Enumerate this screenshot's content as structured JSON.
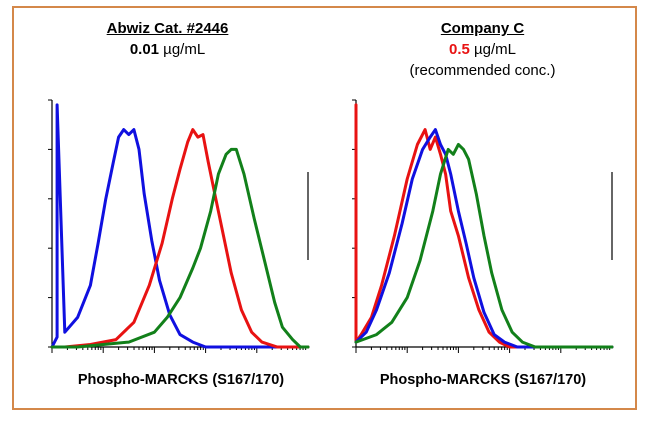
{
  "colors": {
    "frame": "#d4884a",
    "blue": "#1010e0",
    "red": "#e81212",
    "green": "#12801a",
    "highlight": "#e81212"
  },
  "panels": [
    {
      "title": "Abwiz Cat. #2446",
      "conc_value": "0.01",
      "conc_unit": " µg/mL",
      "note": "",
      "xlabel": "Phospho-MARCKS (S167/170)"
    },
    {
      "title": "Company C",
      "conc_value": "0.5",
      "conc_unit": " µg/mL",
      "note": "(recommended conc.)",
      "xlabel": "Phospho-MARCKS (S167/170)"
    }
  ],
  "chart_data": [
    {
      "type": "line",
      "title": "Abwiz Cat. #2446",
      "xlabel": "Phospho-MARCKS (S167/170)",
      "ylabel": "",
      "x_scale": "log",
      "xlim": [
        0,
        1
      ],
      "ylim": [
        0,
        1
      ],
      "grid": false,
      "series": [
        {
          "color": "blue",
          "x": [
            0.0,
            0.02,
            0.02,
            0.05,
            0.1,
            0.15,
            0.18,
            0.21,
            0.24,
            0.26,
            0.28,
            0.3,
            0.32,
            0.34,
            0.36,
            0.39,
            0.42,
            0.46,
            0.5,
            0.55,
            0.6,
            1.0
          ],
          "y": [
            0.0,
            0.04,
            0.98,
            0.06,
            0.12,
            0.25,
            0.42,
            0.6,
            0.75,
            0.85,
            0.88,
            0.86,
            0.88,
            0.8,
            0.62,
            0.43,
            0.27,
            0.13,
            0.05,
            0.02,
            0.0,
            0.0
          ]
        },
        {
          "color": "red",
          "x": [
            0.0,
            0.05,
            0.15,
            0.25,
            0.32,
            0.38,
            0.43,
            0.47,
            0.5,
            0.53,
            0.55,
            0.57,
            0.59,
            0.61,
            0.64,
            0.67,
            0.7,
            0.74,
            0.78,
            0.82,
            0.88,
            1.0
          ],
          "y": [
            0.0,
            0.0,
            0.01,
            0.03,
            0.1,
            0.25,
            0.42,
            0.6,
            0.72,
            0.83,
            0.88,
            0.85,
            0.86,
            0.75,
            0.6,
            0.45,
            0.3,
            0.15,
            0.06,
            0.02,
            0.0,
            0.0
          ]
        },
        {
          "color": "green",
          "x": [
            0.0,
            0.1,
            0.2,
            0.3,
            0.4,
            0.45,
            0.5,
            0.55,
            0.58,
            0.62,
            0.65,
            0.68,
            0.7,
            0.72,
            0.75,
            0.79,
            0.83,
            0.87,
            0.9,
            0.94,
            0.97,
            1.0
          ],
          "y": [
            0.0,
            0.0,
            0.01,
            0.02,
            0.06,
            0.12,
            0.2,
            0.32,
            0.4,
            0.55,
            0.7,
            0.78,
            0.8,
            0.8,
            0.7,
            0.52,
            0.35,
            0.18,
            0.08,
            0.03,
            0.0,
            0.0
          ]
        }
      ]
    },
    {
      "type": "line",
      "title": "Company C",
      "xlabel": "Phospho-MARCKS (S167/170)",
      "ylabel": "",
      "x_scale": "log",
      "xlim": [
        0,
        1
      ],
      "ylim": [
        0,
        1
      ],
      "grid": false,
      "series": [
        {
          "color": "red",
          "x": [
            0.0,
            0.0,
            0.02,
            0.06,
            0.1,
            0.15,
            0.2,
            0.24,
            0.27,
            0.29,
            0.31,
            0.33,
            0.35,
            0.37,
            0.4,
            0.44,
            0.48,
            0.52,
            0.56,
            0.6,
            0.65,
            1.0
          ],
          "y": [
            0.98,
            0.02,
            0.05,
            0.12,
            0.25,
            0.45,
            0.68,
            0.82,
            0.88,
            0.8,
            0.85,
            0.78,
            0.7,
            0.55,
            0.45,
            0.28,
            0.15,
            0.06,
            0.02,
            0.0,
            0.0,
            0.0
          ]
        },
        {
          "color": "blue",
          "x": [
            0.0,
            0.04,
            0.08,
            0.13,
            0.18,
            0.22,
            0.26,
            0.29,
            0.31,
            0.33,
            0.35,
            0.37,
            0.4,
            0.43,
            0.46,
            0.5,
            0.54,
            0.58,
            0.63,
            0.68,
            1.0
          ],
          "y": [
            0.02,
            0.06,
            0.15,
            0.3,
            0.5,
            0.68,
            0.8,
            0.85,
            0.88,
            0.82,
            0.78,
            0.7,
            0.55,
            0.42,
            0.28,
            0.14,
            0.05,
            0.02,
            0.0,
            0.0,
            0.0
          ]
        },
        {
          "color": "green",
          "x": [
            0.0,
            0.08,
            0.14,
            0.2,
            0.25,
            0.3,
            0.33,
            0.36,
            0.38,
            0.4,
            0.42,
            0.44,
            0.47,
            0.5,
            0.53,
            0.57,
            0.61,
            0.65,
            0.7,
            0.75,
            1.0
          ],
          "y": [
            0.02,
            0.05,
            0.1,
            0.2,
            0.35,
            0.55,
            0.7,
            0.8,
            0.78,
            0.82,
            0.8,
            0.76,
            0.62,
            0.45,
            0.3,
            0.15,
            0.06,
            0.02,
            0.0,
            0.0,
            0.0
          ]
        }
      ]
    }
  ]
}
